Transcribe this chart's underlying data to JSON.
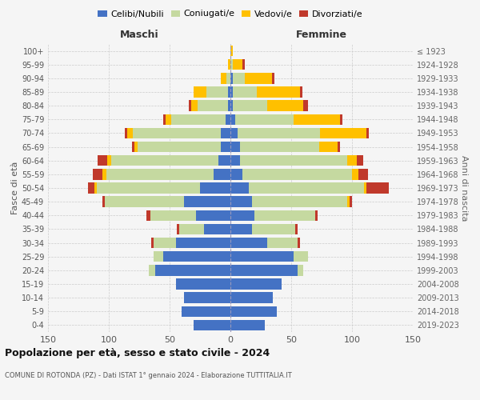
{
  "age_groups": [
    "0-4",
    "5-9",
    "10-14",
    "15-19",
    "20-24",
    "25-29",
    "30-34",
    "35-39",
    "40-44",
    "45-49",
    "50-54",
    "55-59",
    "60-64",
    "65-69",
    "70-74",
    "75-79",
    "80-84",
    "85-89",
    "90-94",
    "95-99",
    "100+"
  ],
  "birth_years": [
    "2019-2023",
    "2014-2018",
    "2009-2013",
    "2004-2008",
    "1999-2003",
    "1994-1998",
    "1989-1993",
    "1984-1988",
    "1979-1983",
    "1974-1978",
    "1969-1973",
    "1964-1968",
    "1959-1963",
    "1954-1958",
    "1949-1953",
    "1944-1948",
    "1939-1943",
    "1934-1938",
    "1929-1933",
    "1924-1928",
    "≤ 1923"
  ],
  "males": {
    "celibi": [
      30,
      40,
      38,
      45,
      62,
      55,
      45,
      22,
      28,
      38,
      25,
      14,
      10,
      8,
      8,
      4,
      2,
      2,
      0,
      0,
      0
    ],
    "coniugati": [
      0,
      0,
      0,
      0,
      5,
      8,
      18,
      20,
      38,
      65,
      85,
      88,
      88,
      68,
      72,
      45,
      25,
      18,
      3,
      0,
      0
    ],
    "vedovi": [
      0,
      0,
      0,
      0,
      0,
      0,
      0,
      0,
      0,
      0,
      2,
      3,
      3,
      3,
      5,
      4,
      5,
      10,
      5,
      2,
      0
    ],
    "divorziati": [
      0,
      0,
      0,
      0,
      0,
      0,
      2,
      2,
      3,
      2,
      5,
      8,
      8,
      2,
      2,
      2,
      2,
      0,
      0,
      0,
      0
    ]
  },
  "females": {
    "nubili": [
      28,
      38,
      35,
      42,
      55,
      52,
      30,
      18,
      20,
      18,
      15,
      10,
      8,
      8,
      6,
      4,
      2,
      2,
      2,
      0,
      0
    ],
    "coniugate": [
      0,
      0,
      0,
      0,
      5,
      12,
      25,
      35,
      50,
      78,
      95,
      90,
      88,
      65,
      68,
      48,
      28,
      20,
      10,
      2,
      0
    ],
    "vedove": [
      0,
      0,
      0,
      0,
      0,
      0,
      0,
      0,
      0,
      2,
      2,
      5,
      8,
      15,
      38,
      38,
      30,
      35,
      22,
      8,
      2
    ],
    "divorziate": [
      0,
      0,
      0,
      0,
      0,
      0,
      2,
      2,
      2,
      2,
      18,
      8,
      5,
      2,
      2,
      2,
      4,
      2,
      2,
      2,
      0
    ]
  },
  "colors": {
    "celibi": "#4472c4",
    "coniugati": "#c5d9a0",
    "vedovi": "#ffc000",
    "divorziati": "#c0392b"
  },
  "title": "Popolazione per età, sesso e stato civile - 2024",
  "subtitle": "COMUNE DI ROTONDA (PZ) - Dati ISTAT 1° gennaio 2024 - Elaborazione TUTTITALIA.IT",
  "ylabel_left": "Fasce di età",
  "ylabel_right": "Anni di nascita",
  "xlabel_left": "Maschi",
  "xlabel_right": "Femmine",
  "xlim": 150,
  "bg_color": "#f5f5f5",
  "grid_color": "#cccccc"
}
